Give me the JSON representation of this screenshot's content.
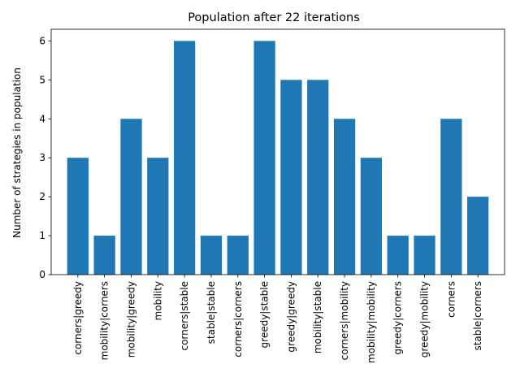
{
  "chart_data": {
    "type": "bar",
    "title": "Population after 22 iterations",
    "xlabel": "",
    "ylabel": "Number of strategies in population",
    "ylim": [
      0,
      6.3
    ],
    "yticks": [
      0,
      1,
      2,
      3,
      4,
      5,
      6
    ],
    "grid": false,
    "bar_color": "#1f77b4",
    "categories": [
      "corners|greedy",
      "mobility|corners",
      "mobility|greedy",
      "mobility",
      "corners|stable",
      "stable|stable",
      "corners|corners",
      "greedy|stable",
      "greedy|greedy",
      "mobility|stable",
      "corners|mobility",
      "mobility|mobility",
      "greedy|corners",
      "greedy|mobility",
      "corners",
      "stable|corners"
    ],
    "values": [
      3,
      1,
      4,
      3,
      6,
      1,
      1,
      6,
      5,
      5,
      4,
      3,
      1,
      1,
      4,
      2
    ]
  }
}
